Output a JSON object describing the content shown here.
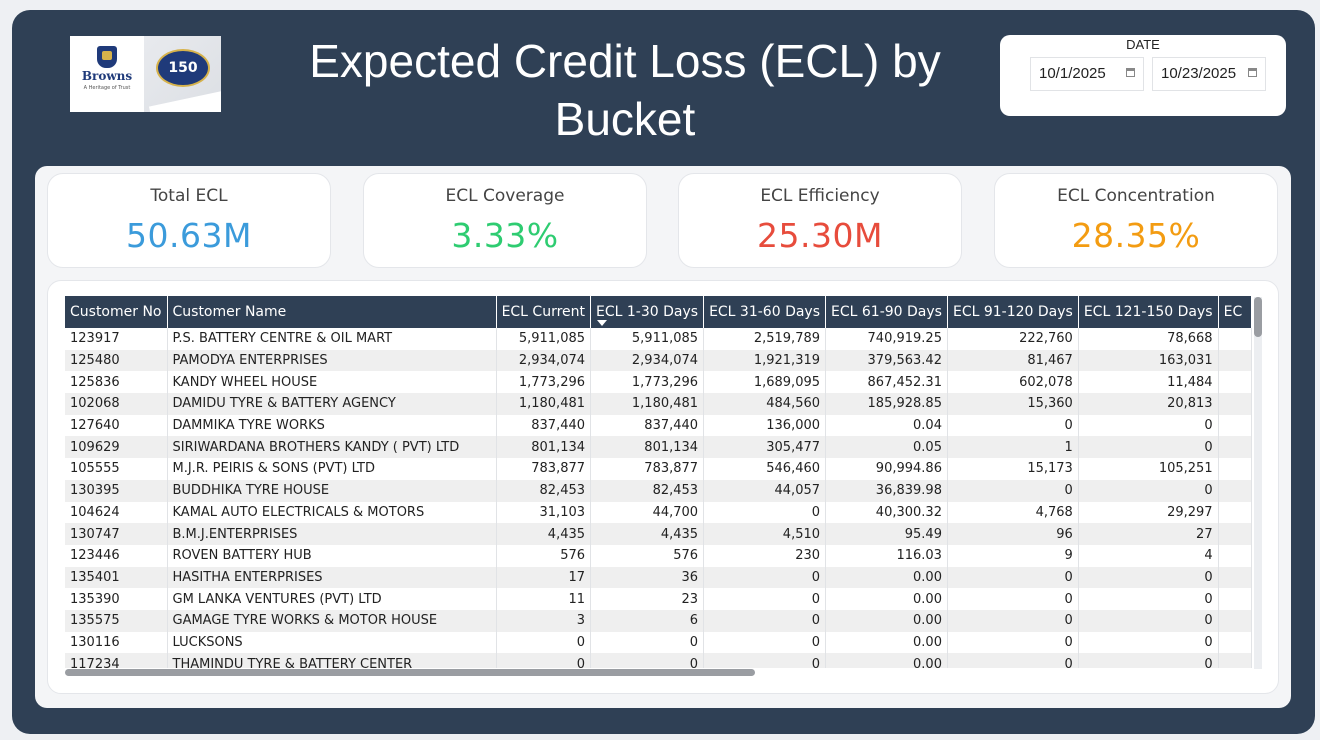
{
  "header": {
    "title": "Expected Credit Loss (ECL) by Bucket",
    "logo": {
      "brand": "Browns",
      "tagline": "A Heritage of Trust",
      "anniversary": "150"
    }
  },
  "date_filter": {
    "label": "DATE",
    "start": "10/1/2025",
    "end": "10/23/2025"
  },
  "kpis": [
    {
      "label": "Total ECL",
      "value": "50.63M",
      "color": "#3b9bdb"
    },
    {
      "label": "ECL Coverage",
      "value": "3.33%",
      "color": "#2ecc71"
    },
    {
      "label": "ECL Efficiency",
      "value": "25.30M",
      "color": "#e74c3c"
    },
    {
      "label": "ECL Concentration",
      "value": "28.35%",
      "color": "#f39c12"
    }
  ],
  "table": {
    "columns": [
      "Customer No",
      "Customer Name",
      "ECL Current",
      "ECL 1-30 Days",
      "ECL 31-60 Days",
      "ECL 61-90 Days",
      "ECL 91-120 Days",
      "ECL 121-150 Days",
      "EC"
    ],
    "sorted_column": "ECL 1-30 Days",
    "rows": [
      [
        "123917",
        "P.S. BATTERY CENTRE & OIL MART",
        "5,911,085",
        "5,911,085",
        "2,519,789",
        "740,919.25",
        "222,760",
        "78,668"
      ],
      [
        "125480",
        "PAMODYA ENTERPRISES",
        "2,934,074",
        "2,934,074",
        "1,921,319",
        "379,563.42",
        "81,467",
        "163,031"
      ],
      [
        "125836",
        "KANDY WHEEL HOUSE",
        "1,773,296",
        "1,773,296",
        "1,689,095",
        "867,452.31",
        "602,078",
        "11,484"
      ],
      [
        "102068",
        "DAMIDU TYRE & BATTERY AGENCY",
        "1,180,481",
        "1,180,481",
        "484,560",
        "185,928.85",
        "15,360",
        "20,813"
      ],
      [
        "127640",
        "DAMMIKA TYRE WORKS",
        "837,440",
        "837,440",
        "136,000",
        "0.04",
        "0",
        "0"
      ],
      [
        "109629",
        "SIRIWARDANA BROTHERS KANDY ( PVT) LTD",
        "801,134",
        "801,134",
        "305,477",
        "0.05",
        "1",
        "0"
      ],
      [
        "105555",
        "M.J.R. PEIRIS & SONS (PVT) LTD",
        "783,877",
        "783,877",
        "546,460",
        "90,994.86",
        "15,173",
        "105,251"
      ],
      [
        "130395",
        "BUDDHIKA TYRE HOUSE",
        "82,453",
        "82,453",
        "44,057",
        "36,839.98",
        "0",
        "0"
      ],
      [
        "104624",
        "KAMAL AUTO ELECTRICALS & MOTORS",
        "31,103",
        "44,700",
        "0",
        "40,300.32",
        "4,768",
        "29,297"
      ],
      [
        "130747",
        "B.M.J.ENTERPRISES",
        "4,435",
        "4,435",
        "4,510",
        "95.49",
        "96",
        "27"
      ],
      [
        "123446",
        "ROVEN BATTERY HUB",
        "576",
        "576",
        "230",
        "116.03",
        "9",
        "4"
      ],
      [
        "135401",
        "HASITHA ENTERPRISES",
        "17",
        "36",
        "0",
        "0.00",
        "0",
        "0"
      ],
      [
        "135390",
        "GM LANKA VENTURES (PVT) LTD",
        "11",
        "23",
        "0",
        "0.00",
        "0",
        "0"
      ],
      [
        "135575",
        "GAMAGE TYRE WORKS & MOTOR HOUSE",
        "3",
        "6",
        "0",
        "0.00",
        "0",
        "0"
      ],
      [
        "130116",
        "LUCKSONS",
        "0",
        "0",
        "0",
        "0.00",
        "0",
        "0"
      ],
      [
        "117234",
        "THAMINDU TYRE & BATTERY CENTER",
        "0",
        "0",
        "0",
        "0.00",
        "0",
        "0"
      ]
    ]
  }
}
